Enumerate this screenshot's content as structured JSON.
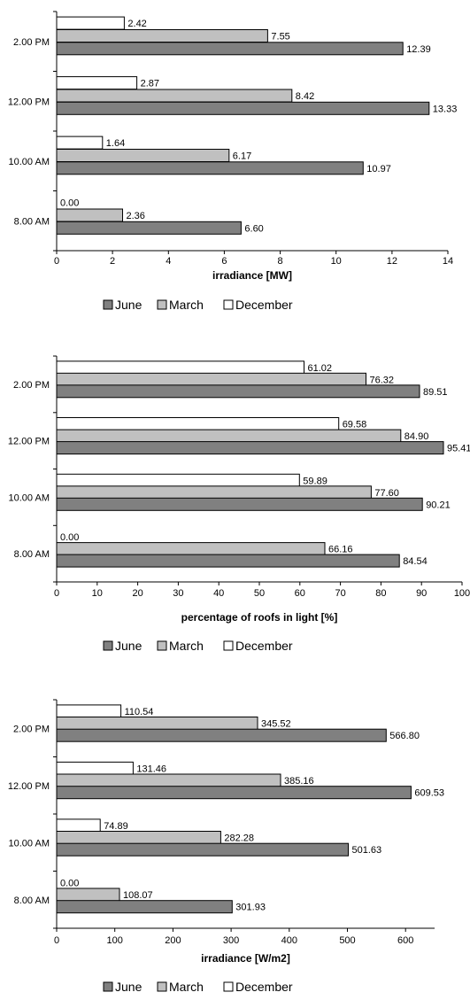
{
  "chart_data": [
    {
      "type": "bar",
      "orientation": "horizontal",
      "categories": [
        "2.00 PM",
        "12.00 PM",
        "10.00 AM",
        "8.00 AM"
      ],
      "series": [
        {
          "name": "December",
          "color": "#ffffff",
          "values": [
            2.42,
            2.87,
            1.64,
            0.0
          ],
          "labels": [
            "2.42",
            "2.87",
            "1.64",
            "0.00"
          ]
        },
        {
          "name": "March",
          "color": "#c0c0c0",
          "values": [
            7.55,
            8.42,
            6.17,
            2.36
          ],
          "labels": [
            "7.55",
            "8.42",
            "6.17",
            "2.36"
          ]
        },
        {
          "name": "June",
          "color": "#808080",
          "values": [
            12.39,
            13.33,
            10.97,
            6.6
          ],
          "labels": [
            "12.39",
            "13.33",
            "10.97",
            "6.60"
          ]
        }
      ],
      "xlabel": "irradiance [MW]",
      "xlim": [
        0,
        14
      ],
      "xticks": [
        0,
        2,
        4,
        6,
        8,
        10,
        12,
        14
      ],
      "legend_order": [
        "June",
        "March",
        "December"
      ],
      "legend_position": "bottom",
      "grid": false
    },
    {
      "type": "bar",
      "orientation": "horizontal",
      "categories": [
        "2.00 PM",
        "12.00 PM",
        "10.00 AM",
        "8.00 AM"
      ],
      "series": [
        {
          "name": "December",
          "color": "#ffffff",
          "values": [
            61.02,
            69.58,
            59.89,
            0.0
          ],
          "labels": [
            "61.02",
            "69.58",
            "59.89",
            "0.00"
          ]
        },
        {
          "name": "March",
          "color": "#c0c0c0",
          "values": [
            76.32,
            84.9,
            77.6,
            66.16
          ],
          "labels": [
            "76.32",
            "84.90",
            "77.60",
            "66.16"
          ]
        },
        {
          "name": "June",
          "color": "#808080",
          "values": [
            89.51,
            95.41,
            90.21,
            84.54
          ],
          "labels": [
            "89.51",
            "95.41",
            "90.21",
            "84.54"
          ]
        }
      ],
      "xlabel": "percentage of roofs in light [%]",
      "xlim": [
        0,
        100
      ],
      "xticks": [
        0,
        10,
        20,
        30,
        40,
        50,
        60,
        70,
        80,
        90,
        100
      ],
      "legend_order": [
        "June",
        "March",
        "December"
      ],
      "legend_position": "bottom",
      "grid": false
    },
    {
      "type": "bar",
      "orientation": "horizontal",
      "categories": [
        "2.00 PM",
        "12.00 PM",
        "10.00 AM",
        "8.00 AM"
      ],
      "series": [
        {
          "name": "December",
          "color": "#ffffff",
          "values": [
            110.54,
            131.46,
            74.89,
            0.0
          ],
          "labels": [
            "110.54",
            "131.46",
            "74.89",
            "0.00"
          ]
        },
        {
          "name": "March",
          "color": "#c0c0c0",
          "values": [
            345.52,
            385.16,
            282.28,
            108.07
          ],
          "labels": [
            "345.52",
            "385.16",
            "282.28",
            "108.07"
          ]
        },
        {
          "name": "June",
          "color": "#808080",
          "values": [
            566.8,
            609.53,
            501.63,
            301.93
          ],
          "labels": [
            "566.80",
            "609.53",
            "501.63",
            "301.93"
          ]
        }
      ],
      "xlabel": "irradiance [W/m2]",
      "xlim": [
        0,
        650
      ],
      "xticks": [
        0,
        100,
        200,
        300,
        400,
        500,
        600
      ],
      "legend_order": [
        "June",
        "March",
        "December"
      ],
      "legend_position": "bottom",
      "grid": false
    }
  ]
}
